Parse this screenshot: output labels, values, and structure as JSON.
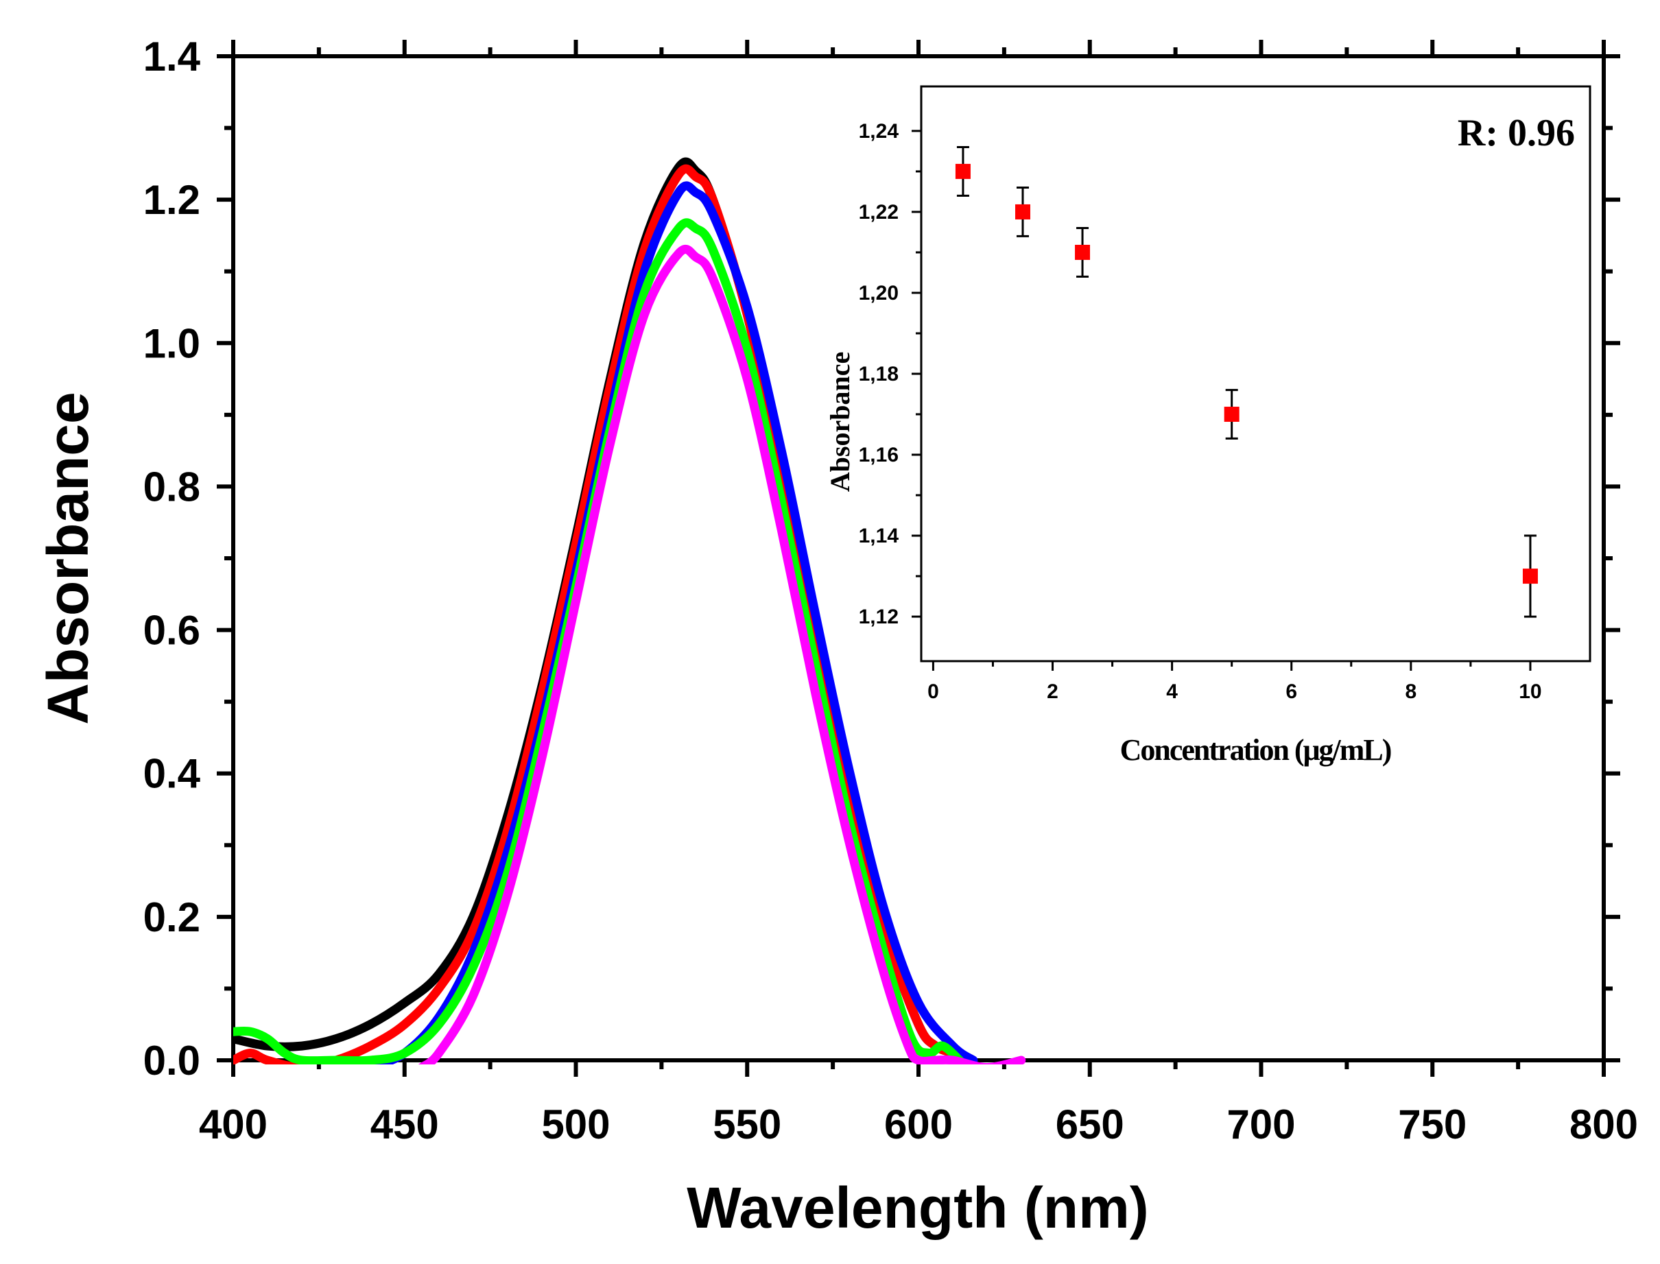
{
  "chart_data": [
    {
      "type": "line",
      "title": "",
      "xlabel": "Wavelength (nm)",
      "ylabel": "Absorbance",
      "xlim": [
        400,
        800
      ],
      "ylim": [
        0.0,
        1.4
      ],
      "xticks": [
        400,
        450,
        500,
        550,
        600,
        650,
        700,
        750,
        800
      ],
      "xtick_labels": [
        "400",
        "450",
        "500",
        "550",
        "600",
        "650",
        "700",
        "750",
        "800"
      ],
      "yticks": [
        0.0,
        0.2,
        0.4,
        0.6,
        0.8,
        1.0,
        1.2,
        1.4
      ],
      "ytick_labels": [
        "0.0",
        "0.2",
        "0.4",
        "0.6",
        "0.8",
        "1.0",
        "1.2",
        "1.4"
      ],
      "grid": false,
      "legend": "none",
      "series": [
        {
          "name": "black",
          "color": "#000000",
          "x": [
            400,
            410,
            420,
            430,
            440,
            450,
            460,
            470,
            480,
            490,
            500,
            510,
            520,
            530,
            535,
            540,
            550,
            560,
            570,
            580,
            590,
            600,
            605,
            610,
            614
          ],
          "y": [
            0.03,
            0.02,
            0.02,
            0.03,
            0.05,
            0.08,
            0.12,
            0.2,
            0.34,
            0.52,
            0.73,
            0.95,
            1.14,
            1.245,
            1.24,
            1.2,
            1.04,
            0.82,
            0.58,
            0.36,
            0.18,
            0.05,
            0.02,
            0.01,
            0.0
          ]
        },
        {
          "name": "red",
          "color": "#ff0000",
          "x": [
            400,
            405,
            410,
            420,
            430,
            440,
            450,
            460,
            470,
            480,
            490,
            500,
            510,
            520,
            530,
            535,
            540,
            550,
            560,
            570,
            580,
            590,
            600,
            605,
            610,
            614
          ],
          "y": [
            0.0,
            0.01,
            0.0,
            -0.01,
            0.0,
            0.02,
            0.05,
            0.1,
            0.18,
            0.32,
            0.51,
            0.72,
            0.94,
            1.13,
            1.235,
            1.232,
            1.2,
            1.04,
            0.82,
            0.58,
            0.36,
            0.18,
            0.05,
            0.02,
            0.01,
            0.0
          ]
        },
        {
          "name": "blue",
          "color": "#0000ff",
          "x": [
            440,
            450,
            460,
            470,
            480,
            490,
            500,
            510,
            520,
            530,
            535,
            540,
            550,
            560,
            570,
            580,
            590,
            600,
            610,
            616
          ],
          "y": [
            -0.01,
            0.01,
            0.06,
            0.15,
            0.29,
            0.47,
            0.68,
            0.9,
            1.1,
            1.21,
            1.21,
            1.18,
            1.05,
            0.85,
            0.62,
            0.4,
            0.21,
            0.08,
            0.02,
            0.0
          ]
        },
        {
          "name": "green",
          "color": "#00ff00",
          "x": [
            400,
            405,
            410,
            415,
            420,
            430,
            440,
            450,
            460,
            470,
            480,
            490,
            500,
            510,
            520,
            530,
            535,
            540,
            550,
            560,
            570,
            580,
            590,
            598,
            603,
            607,
            612
          ],
          "y": [
            0.04,
            0.04,
            0.03,
            0.01,
            0.0,
            0.0,
            0.0,
            0.01,
            0.05,
            0.13,
            0.26,
            0.45,
            0.66,
            0.88,
            1.07,
            1.16,
            1.16,
            1.13,
            0.99,
            0.78,
            0.55,
            0.33,
            0.15,
            0.03,
            0.01,
            0.02,
            0.0
          ]
        },
        {
          "name": "magenta",
          "color": "#ff00ff",
          "x": [
            455,
            460,
            470,
            480,
            490,
            500,
            510,
            520,
            530,
            535,
            540,
            550,
            560,
            570,
            580,
            590,
            597,
            600,
            605,
            610,
            620,
            630
          ],
          "y": [
            -0.01,
            0.01,
            0.09,
            0.23,
            0.42,
            0.64,
            0.86,
            1.04,
            1.125,
            1.12,
            1.09,
            0.95,
            0.74,
            0.51,
            0.3,
            0.12,
            0.02,
            0.0,
            0.0,
            0.0,
            -0.01,
            0.0
          ]
        }
      ]
    },
    {
      "type": "scatter",
      "title": "",
      "xlabel": "Concentration (μg/mL)",
      "ylabel": "Absorbance",
      "annotation": "R: 0.96",
      "xlim": [
        -0.2,
        11.0
      ],
      "ylim": [
        1.109,
        1.251
      ],
      "xticks": [
        0,
        2,
        4,
        6,
        8,
        10
      ],
      "xtick_labels": [
        "0",
        "2",
        "4",
        "6",
        "8",
        "10"
      ],
      "yticks": [
        1.12,
        1.14,
        1.16,
        1.18,
        1.2,
        1.22,
        1.24
      ],
      "ytick_labels": [
        "1,12",
        "1,14",
        "1,16",
        "1,18",
        "1,20",
        "1,22",
        "1,24"
      ],
      "grid": false,
      "legend": "none",
      "marker_color": "#ff0000",
      "x": [
        0.5,
        1.5,
        2.5,
        5,
        10
      ],
      "y": [
        1.23,
        1.22,
        1.21,
        1.17,
        1.13
      ],
      "yerr": [
        0.006,
        0.006,
        0.006,
        0.006,
        0.01
      ]
    }
  ]
}
